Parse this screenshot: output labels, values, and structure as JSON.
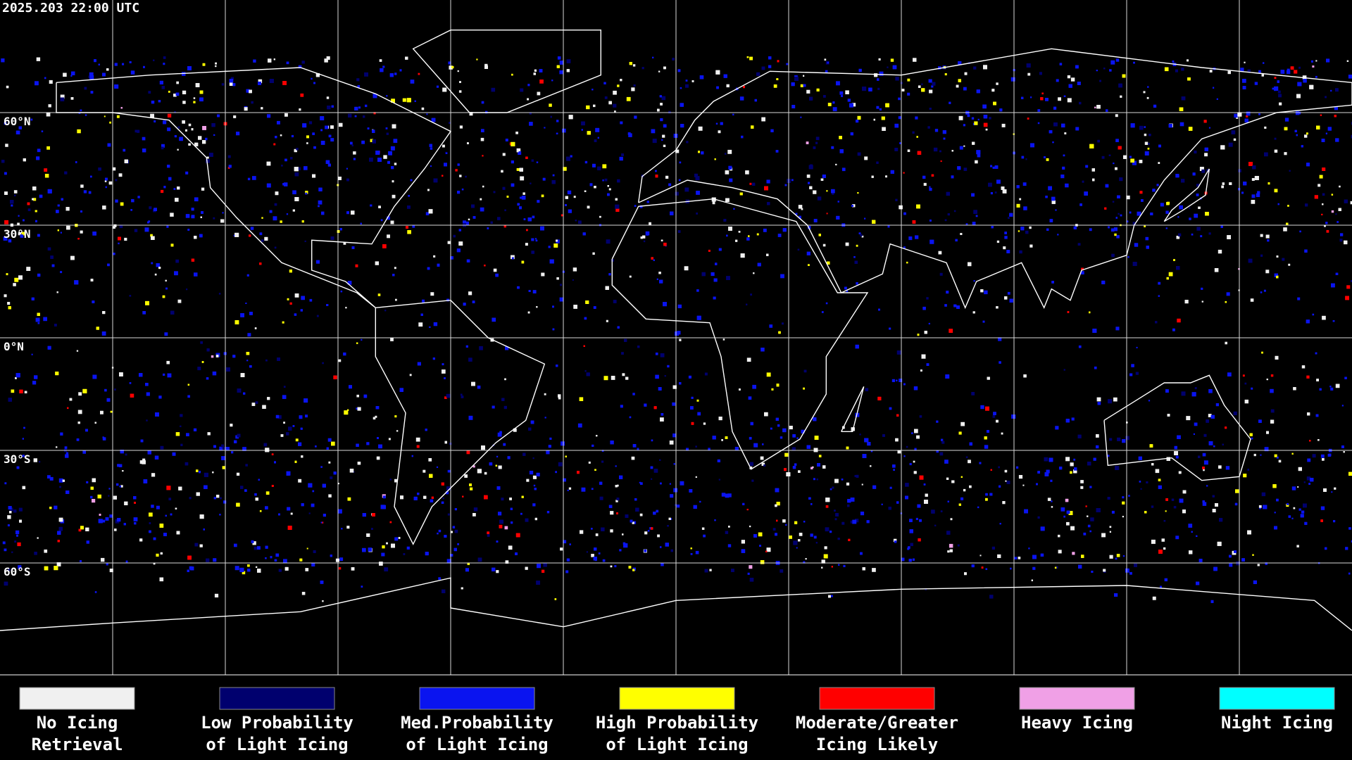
{
  "header": {
    "title": "2025.203 22:00 UTC"
  },
  "map": {
    "lat_labels": [
      "60°N",
      "30°N",
      "0°N",
      "30°S",
      "60°S"
    ]
  },
  "legend": {
    "items": [
      {
        "lines": [
          "No Icing",
          "Retrieval"
        ],
        "color": "#f0f0f0"
      },
      {
        "lines": [
          "Low Probability",
          "of Light Icing"
        ],
        "color": "#00006e"
      },
      {
        "lines": [
          "Med.Probability",
          "of Light Icing"
        ],
        "color": "#0a14f0"
      },
      {
        "lines": [
          "High Probability",
          "of Light Icing"
        ],
        "color": "#ffff00"
      },
      {
        "lines": [
          "Moderate/Greater",
          "Icing Likely"
        ],
        "color": "#ff0000"
      },
      {
        "lines": [
          "Heavy Icing"
        ],
        "color": "#f0a0e6"
      },
      {
        "lines": [
          "Night Icing"
        ],
        "color": "#00ffff"
      }
    ]
  }
}
